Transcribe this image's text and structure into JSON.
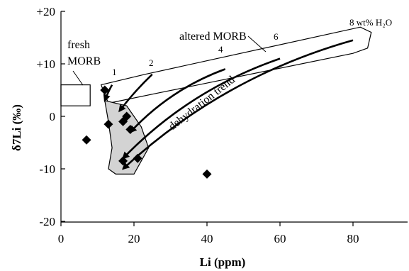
{
  "chart_data": {
    "type": "scatter",
    "title": "",
    "xlabel": "Li (ppm)",
    "ylabel": "δ7Li (‰)",
    "xlim": [
      0,
      95
    ],
    "ylim": [
      -20,
      21
    ],
    "xticks": [
      0,
      20,
      40,
      60,
      80
    ],
    "yticks": [
      -20,
      -10,
      0,
      10,
      20
    ],
    "xtick_labels": [
      "0",
      "20",
      "40",
      "60",
      "80"
    ],
    "ytick_labels": [
      "-20",
      "-10",
      "0",
      "+10",
      "+20"
    ],
    "grid": false,
    "legend": "none",
    "series": [
      {
        "marker": "diamond",
        "color": "#000000",
        "points": [
          {
            "x": 12,
            "y": 5
          },
          {
            "x": 13,
            "y": -1.5
          },
          {
            "x": 17,
            "y": -1
          },
          {
            "x": 18,
            "y": 0
          },
          {
            "x": 19,
            "y": -2.5
          },
          {
            "x": 17,
            "y": -8.5
          },
          {
            "x": 21,
            "y": -8
          },
          {
            "x": 7,
            "y": -4.5
          },
          {
            "x": 40,
            "y": -11
          }
        ]
      }
    ],
    "regions": [
      {
        "label": "fresh MORB",
        "shape": "rectangle",
        "x": [
          0,
          8
        ],
        "y": [
          2,
          6
        ]
      },
      {
        "label": "altered MORB",
        "shape": "polygon",
        "points": [
          [
            11,
            6
          ],
          [
            23,
            8
          ],
          [
            82,
            17
          ],
          [
            85,
            16
          ],
          [
            84,
            13
          ],
          [
            80,
            12
          ],
          [
            27,
            4.5
          ],
          [
            13,
            2.5
          ]
        ]
      },
      {
        "label": "",
        "shape": "polygon",
        "fill": "#d3d3d3",
        "points": [
          [
            12,
            3
          ],
          [
            18,
            2
          ],
          [
            22,
            -2
          ],
          [
            24,
            -6
          ],
          [
            20,
            -11
          ],
          [
            15,
            -11
          ],
          [
            13,
            -10
          ],
          [
            14,
            -6
          ],
          [
            13,
            -1
          ]
        ]
      }
    ],
    "arrows": [
      {
        "label": "1",
        "from": [
          14,
          6
        ],
        "to": [
          12,
          3
        ]
      },
      {
        "label": "2",
        "from": [
          25,
          8
        ],
        "to": [
          16,
          1
        ]
      },
      {
        "label": "4",
        "from": [
          45,
          9
        ],
        "to": [
          19,
          -3
        ]
      },
      {
        "label": "6",
        "from": [
          60,
          11
        ],
        "to": [
          17,
          -8
        ]
      },
      {
        "label": "8 wt% H₂O",
        "from": [
          80,
          14.5
        ],
        "to": [
          17,
          -10
        ]
      }
    ],
    "annotations": {
      "fresh_line1": "fresh",
      "fresh_line2": "MORB",
      "altered": "altered MORB",
      "trend": "dehydration trend",
      "arrow_1": "1",
      "arrow_2": "2",
      "arrow_4": "4",
      "arrow_6": "6",
      "arrow_8": "8 wt% H₂O"
    },
    "colors": {
      "axes": "#000000",
      "marker": "#000000",
      "region_fill": "#d3d3d3"
    }
  }
}
